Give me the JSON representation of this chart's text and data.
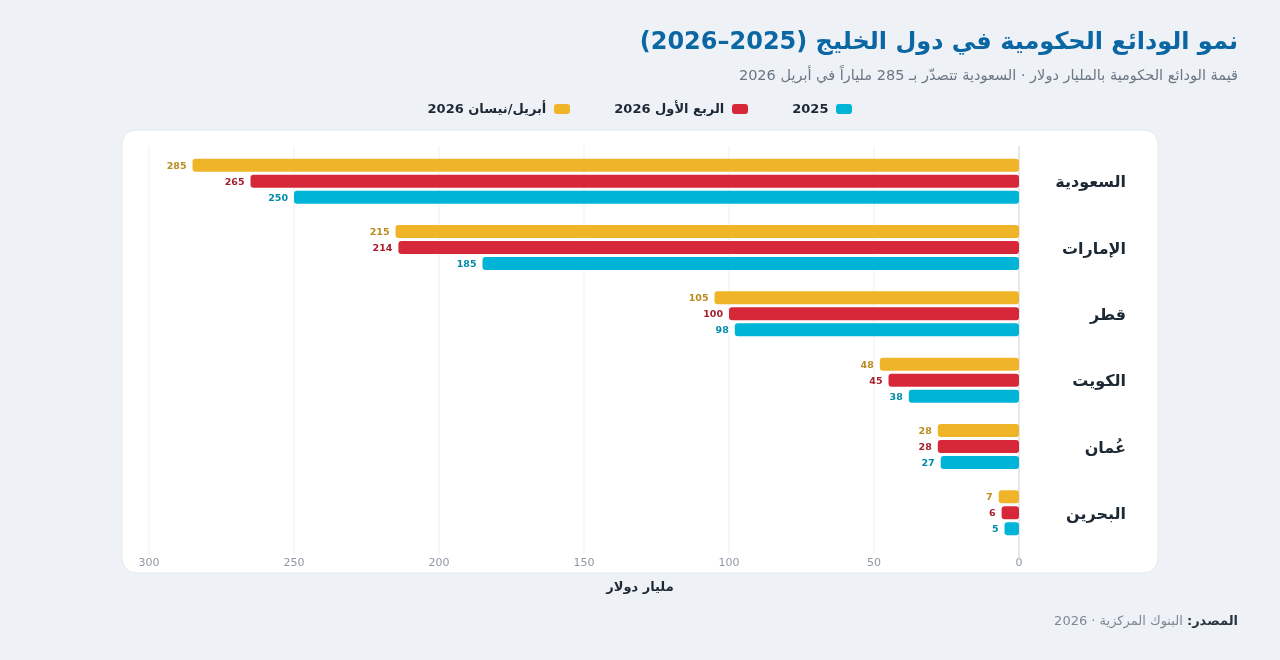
{
  "chart_data": {
    "type": "bar",
    "orientation": "horizontal",
    "title": "نمو الودائع الحكومية في دول الخليج (2025–2026)",
    "subtitle": "قيمة الودائع الحكومية بالمليار دولار · السعودية تتصدّر بـ 285 ملياراً في أبريل 2026",
    "xlabel": "مليار دولار",
    "categories": [
      "السعودية",
      "الإمارات",
      "قطر",
      "الكويت",
      "عُمان",
      "البحرين"
    ],
    "series": [
      {
        "name": "2025",
        "color": "#00b4d8",
        "values": [
          250,
          185,
          98,
          38,
          27,
          5
        ]
      },
      {
        "name": "الربع الأول 2026",
        "color": "#d62839",
        "values": [
          265,
          214,
          100,
          45,
          28,
          6
        ]
      },
      {
        "name": "أبريل/نيسان 2026",
        "color": "#f0b429",
        "values": [
          285,
          215,
          105,
          48,
          28,
          7
        ]
      }
    ],
    "xlim": [
      300,
      0
    ],
    "xticks": [
      300,
      250,
      200,
      150,
      100,
      50,
      0
    ],
    "grid": "x",
    "legend": "top",
    "data_labels": true,
    "annotations": [
      "**المصدر:** البنوك المركزية · 2026"
    ]
  }
}
